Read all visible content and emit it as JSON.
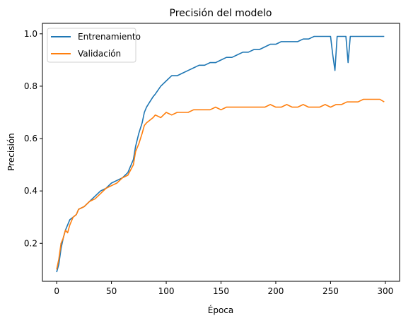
{
  "chart_data": {
    "type": "line",
    "title": "Precisión del modelo",
    "xlabel": "Época",
    "ylabel": "Precisión",
    "xlim": [
      -13,
      313
    ],
    "ylim": [
      0.055,
      1.04
    ],
    "xticks": [
      0,
      50,
      100,
      150,
      200,
      250,
      300
    ],
    "yticks": [
      0.2,
      0.4,
      0.6,
      0.8,
      1.0
    ],
    "xtick_labels": [
      "0",
      "50",
      "100",
      "150",
      "200",
      "250",
      "300"
    ],
    "ytick_labels": [
      "0.2",
      "0.4",
      "0.6",
      "0.8",
      "1.0"
    ],
    "grid": false,
    "legend_position": "top-left",
    "series": [
      {
        "name": "Entrenamiento",
        "color": "#1f77b4",
        "x": [
          0,
          2,
          4,
          6,
          8,
          10,
          12,
          15,
          18,
          20,
          25,
          30,
          35,
          40,
          45,
          50,
          55,
          60,
          65,
          70,
          72,
          75,
          78,
          80,
          82,
          85,
          88,
          90,
          95,
          100,
          105,
          110,
          115,
          120,
          125,
          130,
          135,
          140,
          145,
          150,
          155,
          160,
          165,
          170,
          175,
          180,
          185,
          190,
          195,
          200,
          205,
          210,
          215,
          220,
          225,
          230,
          235,
          240,
          245,
          250,
          252,
          254,
          256,
          258,
          260,
          262,
          264,
          266,
          268,
          270,
          275,
          280,
          285,
          290,
          295,
          299
        ],
        "values": [
          0.09,
          0.12,
          0.18,
          0.22,
          0.25,
          0.27,
          0.29,
          0.3,
          0.31,
          0.33,
          0.34,
          0.36,
          0.38,
          0.4,
          0.41,
          0.43,
          0.44,
          0.45,
          0.47,
          0.52,
          0.57,
          0.62,
          0.66,
          0.7,
          0.72,
          0.74,
          0.76,
          0.77,
          0.8,
          0.82,
          0.84,
          0.84,
          0.85,
          0.86,
          0.87,
          0.88,
          0.88,
          0.89,
          0.89,
          0.9,
          0.91,
          0.91,
          0.92,
          0.93,
          0.93,
          0.94,
          0.94,
          0.95,
          0.96,
          0.96,
          0.97,
          0.97,
          0.97,
          0.97,
          0.98,
          0.98,
          0.99,
          0.99,
          0.99,
          0.99,
          0.92,
          0.86,
          0.99,
          0.99,
          0.99,
          0.99,
          0.99,
          0.89,
          0.99,
          0.99,
          0.99,
          0.99,
          0.99,
          0.99,
          0.99,
          0.99
        ]
      },
      {
        "name": "Validación",
        "color": "#ff7f0e",
        "x": [
          0,
          2,
          4,
          6,
          8,
          10,
          12,
          15,
          18,
          20,
          25,
          30,
          35,
          40,
          45,
          50,
          55,
          60,
          65,
          70,
          72,
          75,
          78,
          80,
          82,
          85,
          88,
          90,
          95,
          100,
          105,
          110,
          115,
          120,
          125,
          130,
          135,
          140,
          145,
          150,
          155,
          160,
          165,
          170,
          175,
          180,
          185,
          190,
          195,
          200,
          205,
          210,
          215,
          220,
          225,
          230,
          235,
          240,
          245,
          250,
          255,
          260,
          265,
          270,
          275,
          280,
          285,
          290,
          295,
          299
        ],
        "values": [
          0.1,
          0.14,
          0.2,
          0.22,
          0.25,
          0.24,
          0.27,
          0.3,
          0.31,
          0.33,
          0.34,
          0.36,
          0.37,
          0.39,
          0.41,
          0.42,
          0.43,
          0.45,
          0.46,
          0.5,
          0.55,
          0.58,
          0.62,
          0.65,
          0.66,
          0.67,
          0.68,
          0.69,
          0.68,
          0.7,
          0.69,
          0.7,
          0.7,
          0.7,
          0.71,
          0.71,
          0.71,
          0.71,
          0.72,
          0.71,
          0.72,
          0.72,
          0.72,
          0.72,
          0.72,
          0.72,
          0.72,
          0.72,
          0.73,
          0.72,
          0.72,
          0.73,
          0.72,
          0.72,
          0.73,
          0.72,
          0.72,
          0.72,
          0.73,
          0.72,
          0.73,
          0.73,
          0.74,
          0.74,
          0.74,
          0.75,
          0.75,
          0.75,
          0.75,
          0.74
        ]
      }
    ]
  }
}
